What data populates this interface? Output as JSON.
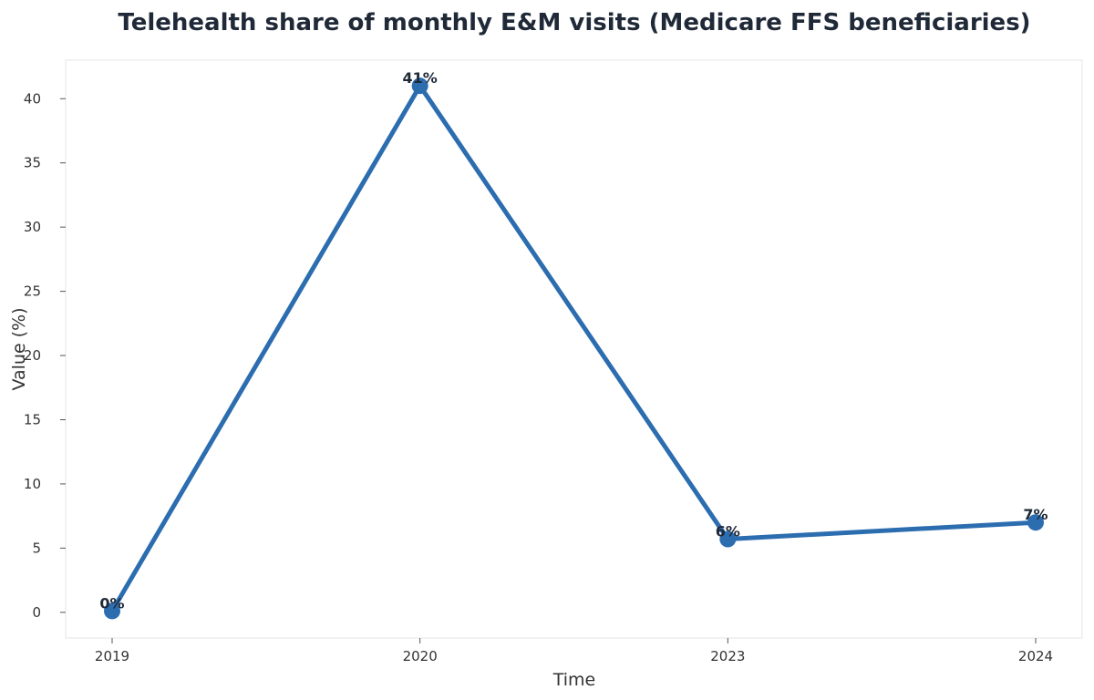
{
  "chart_data": {
    "type": "line",
    "title": "Telehealth share of monthly E&M visits (Medicare FFS beneficiaries)",
    "xlabel": "Time",
    "ylabel": "Value (%)",
    "categories": [
      "2019",
      "2020",
      "2023",
      "2024"
    ],
    "series": [
      {
        "values": [
          0.1,
          41,
          5.7,
          7
        ],
        "labels": [
          "0%",
          "41%",
          "6%",
          "7%"
        ]
      }
    ],
    "ylim": [
      -2,
      43
    ],
    "yticks": [
      0,
      5,
      10,
      15,
      20,
      25,
      30,
      35,
      40
    ],
    "grid": false,
    "line_color": "#2c6db0",
    "marker_color": "#2c6db0"
  }
}
